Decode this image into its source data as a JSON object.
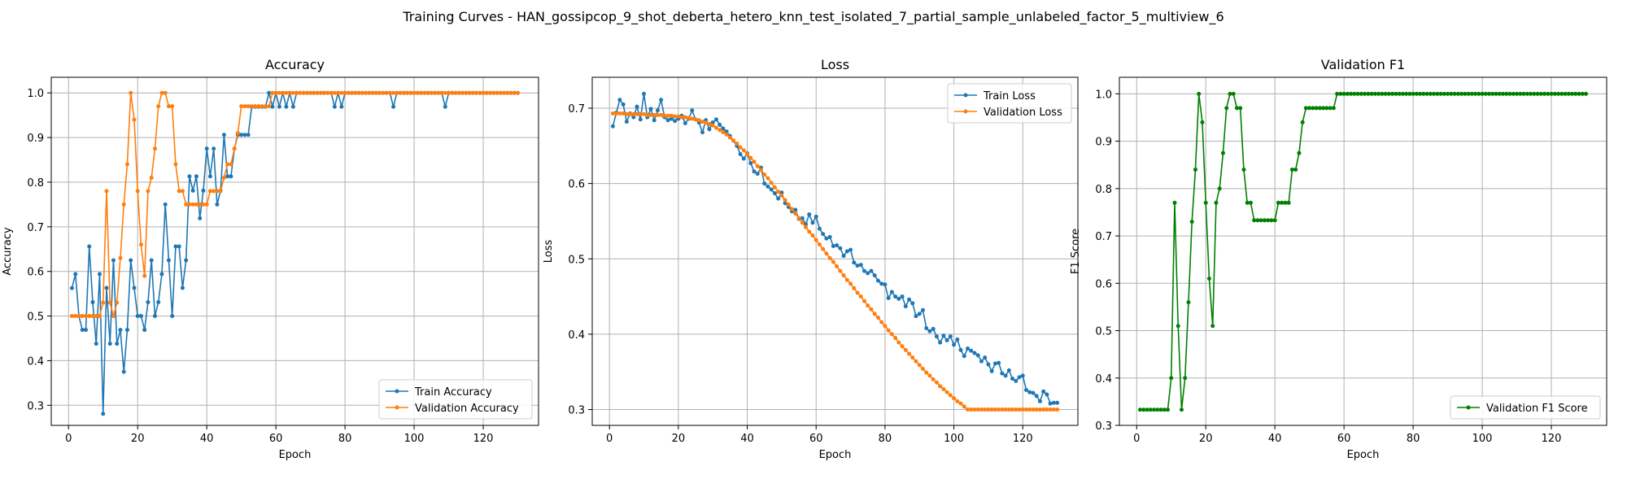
{
  "figure": {
    "suptitle": "Training Curves - HAN_gossipcop_9_shot_deberta_hetero_knn_test_isolated_7_partial_sample_unlabeled_factor_5_multiview_6"
  },
  "colors": {
    "train": "#1f77b4",
    "val": "#ff7f0e",
    "f1": "#008000",
    "grid": "#b0b0b0"
  },
  "chart_data": [
    {
      "type": "line",
      "title": "Accuracy",
      "xlabel": "Epoch",
      "ylabel": "Accuracy",
      "xlim": [
        -5,
        136
      ],
      "ylim": [
        0.255,
        1.035
      ],
      "xticks": [
        0,
        20,
        40,
        60,
        80,
        100,
        120
      ],
      "yticks": [
        0.3,
        0.4,
        0.5,
        0.6,
        0.7,
        0.8,
        0.9,
        1.0
      ],
      "grid": true,
      "legend_position": "lower right",
      "x": [
        1,
        2,
        3,
        4,
        5,
        6,
        7,
        8,
        9,
        10,
        11,
        12,
        13,
        14,
        15,
        16,
        17,
        18,
        19,
        20,
        21,
        22,
        23,
        24,
        25,
        26,
        27,
        28,
        29,
        30,
        31,
        32,
        33,
        34,
        35,
        36,
        37,
        38,
        39,
        40,
        41,
        42,
        43,
        44,
        45,
        46,
        47,
        48,
        49,
        50,
        51,
        52,
        53,
        54,
        55,
        56,
        57,
        58,
        59,
        60,
        61,
        62,
        63,
        64,
        65,
        66,
        67,
        68,
        69,
        70,
        71,
        72,
        73,
        74,
        75,
        76,
        77,
        78,
        79,
        80,
        81,
        82,
        83,
        84,
        85,
        86,
        87,
        88,
        89,
        90,
        91,
        92,
        93,
        94,
        95,
        96,
        97,
        98,
        99,
        100,
        101,
        102,
        103,
        104,
        105,
        106,
        107,
        108,
        109,
        110,
        111,
        112,
        113,
        114,
        115,
        116,
        117,
        118,
        119,
        120,
        121,
        122,
        123,
        124,
        125,
        126,
        127,
        128,
        129,
        130
      ],
      "series": [
        {
          "name": "Train Accuracy",
          "color": "#1f77b4",
          "values": [
            0.5625,
            0.594,
            0.5,
            0.469,
            0.469,
            0.656,
            0.531,
            0.438,
            0.594,
            0.281,
            0.563,
            0.438,
            0.625,
            0.438,
            0.469,
            0.375,
            0.469,
            0.625,
            0.563,
            0.5,
            0.5,
            0.469,
            0.531,
            0.625,
            0.5,
            0.531,
            0.594,
            0.75,
            0.625,
            0.5,
            0.656,
            0.656,
            0.563,
            0.625,
            0.813,
            0.781,
            0.813,
            0.719,
            0.781,
            0.875,
            0.813,
            0.875,
            0.75,
            0.781,
            0.906,
            0.813,
            0.813,
            0.875,
            0.906,
            0.906,
            0.906,
            0.906,
            0.969,
            0.969,
            0.969,
            0.969,
            0.969,
            1.0,
            0.969,
            1.0,
            0.969,
            1.0,
            0.969,
            1.0,
            0.969,
            1.0,
            1.0,
            1.0,
            1.0,
            1.0,
            1.0,
            1.0,
            1.0,
            1.0,
            1.0,
            1.0,
            0.969,
            1.0,
            0.969,
            1.0,
            1.0,
            1.0,
            1.0,
            1.0,
            1.0,
            1.0,
            1.0,
            1.0,
            1.0,
            1.0,
            1.0,
            1.0,
            1.0,
            0.969,
            1.0,
            1.0,
            1.0,
            1.0,
            1.0,
            1.0,
            1.0,
            1.0,
            1.0,
            1.0,
            1.0,
            1.0,
            1.0,
            1.0,
            0.969,
            1.0,
            1.0,
            1.0,
            1.0,
            1.0,
            1.0,
            1.0,
            1.0,
            1.0,
            1.0,
            1.0,
            1.0,
            1.0,
            1.0,
            1.0,
            1.0,
            1.0,
            1.0,
            1.0,
            1.0,
            1.0
          ]
        },
        {
          "name": "Validation Accuracy",
          "color": "#ff7f0e",
          "values": [
            0.5,
            0.5,
            0.5,
            0.5,
            0.5,
            0.5,
            0.5,
            0.5,
            0.5,
            0.53,
            0.78,
            0.53,
            0.5,
            0.53,
            0.63,
            0.75,
            0.84,
            1.0,
            0.94,
            0.78,
            0.66,
            0.59,
            0.78,
            0.81,
            0.875,
            0.97,
            1.0,
            1.0,
            0.97,
            0.97,
            0.84,
            0.78,
            0.78,
            0.75,
            0.75,
            0.75,
            0.75,
            0.75,
            0.75,
            0.75,
            0.78,
            0.78,
            0.78,
            0.78,
            0.81,
            0.84,
            0.84,
            0.875,
            0.91,
            0.97,
            0.97,
            0.97,
            0.97,
            0.97,
            0.97,
            0.97,
            0.97,
            0.97,
            1.0,
            1.0,
            1.0,
            1.0,
            1.0,
            1.0,
            1.0,
            1.0,
            1.0,
            1.0,
            1.0,
            1.0,
            1.0,
            1.0,
            1.0,
            1.0,
            1.0,
            1.0,
            1.0,
            1.0,
            1.0,
            1.0,
            1.0,
            1.0,
            1.0,
            1.0,
            1.0,
            1.0,
            1.0,
            1.0,
            1.0,
            1.0,
            1.0,
            1.0,
            1.0,
            1.0,
            1.0,
            1.0,
            1.0,
            1.0,
            1.0,
            1.0,
            1.0,
            1.0,
            1.0,
            1.0,
            1.0,
            1.0,
            1.0,
            1.0,
            1.0,
            1.0,
            1.0,
            1.0,
            1.0,
            1.0,
            1.0,
            1.0,
            1.0,
            1.0,
            1.0,
            1.0,
            1.0,
            1.0,
            1.0,
            1.0,
            1.0,
            1.0,
            1.0,
            1.0,
            1.0,
            1.0
          ]
        }
      ]
    },
    {
      "type": "line",
      "title": "Loss",
      "xlabel": "Epoch",
      "ylabel": "Loss",
      "xlim": [
        -5,
        136
      ],
      "ylim": [
        0.279,
        0.741
      ],
      "xticks": [
        0,
        20,
        40,
        60,
        80,
        100,
        120
      ],
      "yticks": [
        0.3,
        0.4,
        0.5,
        0.6,
        0.7
      ],
      "grid": true,
      "legend_position": "upper right",
      "x": [
        1,
        2,
        3,
        4,
        5,
        6,
        7,
        8,
        9,
        10,
        11,
        12,
        13,
        14,
        15,
        16,
        17,
        18,
        19,
        20,
        21,
        22,
        23,
        24,
        25,
        26,
        27,
        28,
        29,
        30,
        31,
        32,
        33,
        34,
        35,
        36,
        37,
        38,
        39,
        40,
        41,
        42,
        43,
        44,
        45,
        46,
        47,
        48,
        49,
        50,
        51,
        52,
        53,
        54,
        55,
        56,
        57,
        58,
        59,
        60,
        61,
        62,
        63,
        64,
        65,
        66,
        67,
        68,
        69,
        70,
        71,
        72,
        73,
        74,
        75,
        76,
        77,
        78,
        79,
        80,
        81,
        82,
        83,
        84,
        85,
        86,
        87,
        88,
        89,
        90,
        91,
        92,
        93,
        94,
        95,
        96,
        97,
        98,
        99,
        100,
        101,
        102,
        103,
        104,
        105,
        106,
        107,
        108,
        109,
        110,
        111,
        112,
        113,
        114,
        115,
        116,
        117,
        118,
        119,
        120,
        121,
        122,
        123,
        124,
        125,
        126,
        127,
        128,
        129,
        130
      ],
      "series": [
        {
          "name": "Train Loss",
          "color": "#1f77b4",
          "values": [
            0.676,
            0.694,
            0.711,
            0.705,
            0.682,
            0.693,
            0.688,
            0.702,
            0.685,
            0.719,
            0.688,
            0.699,
            0.684,
            0.697,
            0.711,
            0.688,
            0.684,
            0.686,
            0.683,
            0.686,
            0.69,
            0.68,
            0.686,
            0.697,
            0.685,
            0.681,
            0.668,
            0.684,
            0.672,
            0.681,
            0.685,
            0.678,
            0.673,
            0.669,
            0.663,
            0.657,
            0.65,
            0.639,
            0.633,
            0.64,
            0.627,
            0.616,
            0.613,
            0.621,
            0.6,
            0.596,
            0.592,
            0.587,
            0.58,
            0.588,
            0.574,
            0.569,
            0.563,
            0.565,
            0.553,
            0.554,
            0.546,
            0.559,
            0.548,
            0.556,
            0.54,
            0.533,
            0.527,
            0.529,
            0.517,
            0.518,
            0.514,
            0.504,
            0.51,
            0.512,
            0.495,
            0.491,
            0.492,
            0.484,
            0.481,
            0.484,
            0.478,
            0.471,
            0.467,
            0.466,
            0.448,
            0.456,
            0.45,
            0.447,
            0.45,
            0.437,
            0.446,
            0.441,
            0.424,
            0.427,
            0.432,
            0.408,
            0.404,
            0.407,
            0.397,
            0.389,
            0.398,
            0.392,
            0.397,
            0.386,
            0.393,
            0.379,
            0.371,
            0.381,
            0.378,
            0.375,
            0.372,
            0.364,
            0.369,
            0.36,
            0.351,
            0.361,
            0.362,
            0.348,
            0.345,
            0.352,
            0.341,
            0.338,
            0.343,
            0.345,
            0.326,
            0.323,
            0.322,
            0.318,
            0.311,
            0.324,
            0.32,
            0.308,
            0.309,
            0.309
          ]
        },
        {
          "name": "Validation Loss",
          "color": "#ff7f0e",
          "values": [
            0.693,
            0.693,
            0.693,
            0.693,
            0.692,
            0.692,
            0.692,
            0.692,
            0.692,
            0.692,
            0.691,
            0.691,
            0.691,
            0.691,
            0.691,
            0.69,
            0.69,
            0.69,
            0.689,
            0.689,
            0.688,
            0.688,
            0.687,
            0.686,
            0.685,
            0.684,
            0.682,
            0.681,
            0.679,
            0.677,
            0.674,
            0.671,
            0.668,
            0.665,
            0.661,
            0.657,
            0.653,
            0.648,
            0.644,
            0.639,
            0.634,
            0.629,
            0.623,
            0.618,
            0.612,
            0.607,
            0.601,
            0.595,
            0.589,
            0.584,
            0.578,
            0.572,
            0.566,
            0.56,
            0.554,
            0.548,
            0.542,
            0.536,
            0.531,
            0.525,
            0.519,
            0.513,
            0.507,
            0.501,
            0.496,
            0.49,
            0.484,
            0.478,
            0.472,
            0.467,
            0.461,
            0.455,
            0.45,
            0.444,
            0.438,
            0.433,
            0.427,
            0.422,
            0.416,
            0.411,
            0.405,
            0.4,
            0.395,
            0.389,
            0.384,
            0.379,
            0.374,
            0.369,
            0.364,
            0.359,
            0.354,
            0.349,
            0.345,
            0.34,
            0.336,
            0.331,
            0.327,
            0.323,
            0.319,
            0.315,
            0.311,
            0.308,
            0.304,
            0.3,
            0.3,
            0.3,
            0.3,
            0.3,
            0.3,
            0.3,
            0.3,
            0.3,
            0.3,
            0.3,
            0.3,
            0.3,
            0.3,
            0.3,
            0.3,
            0.3,
            0.3,
            0.3,
            0.3,
            0.3,
            0.3,
            0.3,
            0.3,
            0.3,
            0.3,
            0.3
          ]
        }
      ]
    },
    {
      "type": "line",
      "title": "Validation F1",
      "xlabel": "Epoch",
      "ylabel": "F1 Score",
      "xlim": [
        -5,
        136
      ],
      "ylim": [
        0.3,
        1.035
      ],
      "xticks": [
        0,
        20,
        40,
        60,
        80,
        100,
        120
      ],
      "yticks": [
        0.3,
        0.4,
        0.5,
        0.6,
        0.7,
        0.8,
        0.9,
        1.0
      ],
      "grid": true,
      "legend_position": "lower right",
      "x": [
        1,
        2,
        3,
        4,
        5,
        6,
        7,
        8,
        9,
        10,
        11,
        12,
        13,
        14,
        15,
        16,
        17,
        18,
        19,
        20,
        21,
        22,
        23,
        24,
        25,
        26,
        27,
        28,
        29,
        30,
        31,
        32,
        33,
        34,
        35,
        36,
        37,
        38,
        39,
        40,
        41,
        42,
        43,
        44,
        45,
        46,
        47,
        48,
        49,
        50,
        51,
        52,
        53,
        54,
        55,
        56,
        57,
        58,
        59,
        60,
        61,
        62,
        63,
        64,
        65,
        66,
        67,
        68,
        69,
        70,
        71,
        72,
        73,
        74,
        75,
        76,
        77,
        78,
        79,
        80,
        81,
        82,
        83,
        84,
        85,
        86,
        87,
        88,
        89,
        90,
        91,
        92,
        93,
        94,
        95,
        96,
        97,
        98,
        99,
        100,
        101,
        102,
        103,
        104,
        105,
        106,
        107,
        108,
        109,
        110,
        111,
        112,
        113,
        114,
        115,
        116,
        117,
        118,
        119,
        120,
        121,
        122,
        123,
        124,
        125,
        126,
        127,
        128,
        129,
        130
      ],
      "series": [
        {
          "name": "Validation F1 Score",
          "color": "#008000",
          "values": [
            0.333,
            0.333,
            0.333,
            0.333,
            0.333,
            0.333,
            0.333,
            0.333,
            0.333,
            0.4,
            0.77,
            0.51,
            0.333,
            0.4,
            0.56,
            0.73,
            0.84,
            1.0,
            0.94,
            0.77,
            0.61,
            0.51,
            0.77,
            0.8,
            0.875,
            0.97,
            1.0,
            1.0,
            0.97,
            0.97,
            0.84,
            0.77,
            0.77,
            0.733,
            0.733,
            0.733,
            0.733,
            0.733,
            0.733,
            0.733,
            0.77,
            0.77,
            0.77,
            0.77,
            0.84,
            0.84,
            0.875,
            0.94,
            0.97,
            0.97,
            0.97,
            0.97,
            0.97,
            0.97,
            0.97,
            0.97,
            0.97,
            1.0,
            1.0,
            1.0,
            1.0,
            1.0,
            1.0,
            1.0,
            1.0,
            1.0,
            1.0,
            1.0,
            1.0,
            1.0,
            1.0,
            1.0,
            1.0,
            1.0,
            1.0,
            1.0,
            1.0,
            1.0,
            1.0,
            1.0,
            1.0,
            1.0,
            1.0,
            1.0,
            1.0,
            1.0,
            1.0,
            1.0,
            1.0,
            1.0,
            1.0,
            1.0,
            1.0,
            1.0,
            1.0,
            1.0,
            1.0,
            1.0,
            1.0,
            1.0,
            1.0,
            1.0,
            1.0,
            1.0,
            1.0,
            1.0,
            1.0,
            1.0,
            1.0,
            1.0,
            1.0,
            1.0,
            1.0,
            1.0,
            1.0,
            1.0,
            1.0,
            1.0,
            1.0,
            1.0,
            1.0,
            1.0,
            1.0,
            1.0,
            1.0,
            1.0,
            1.0,
            1.0,
            1.0,
            1.0
          ]
        }
      ]
    }
  ]
}
